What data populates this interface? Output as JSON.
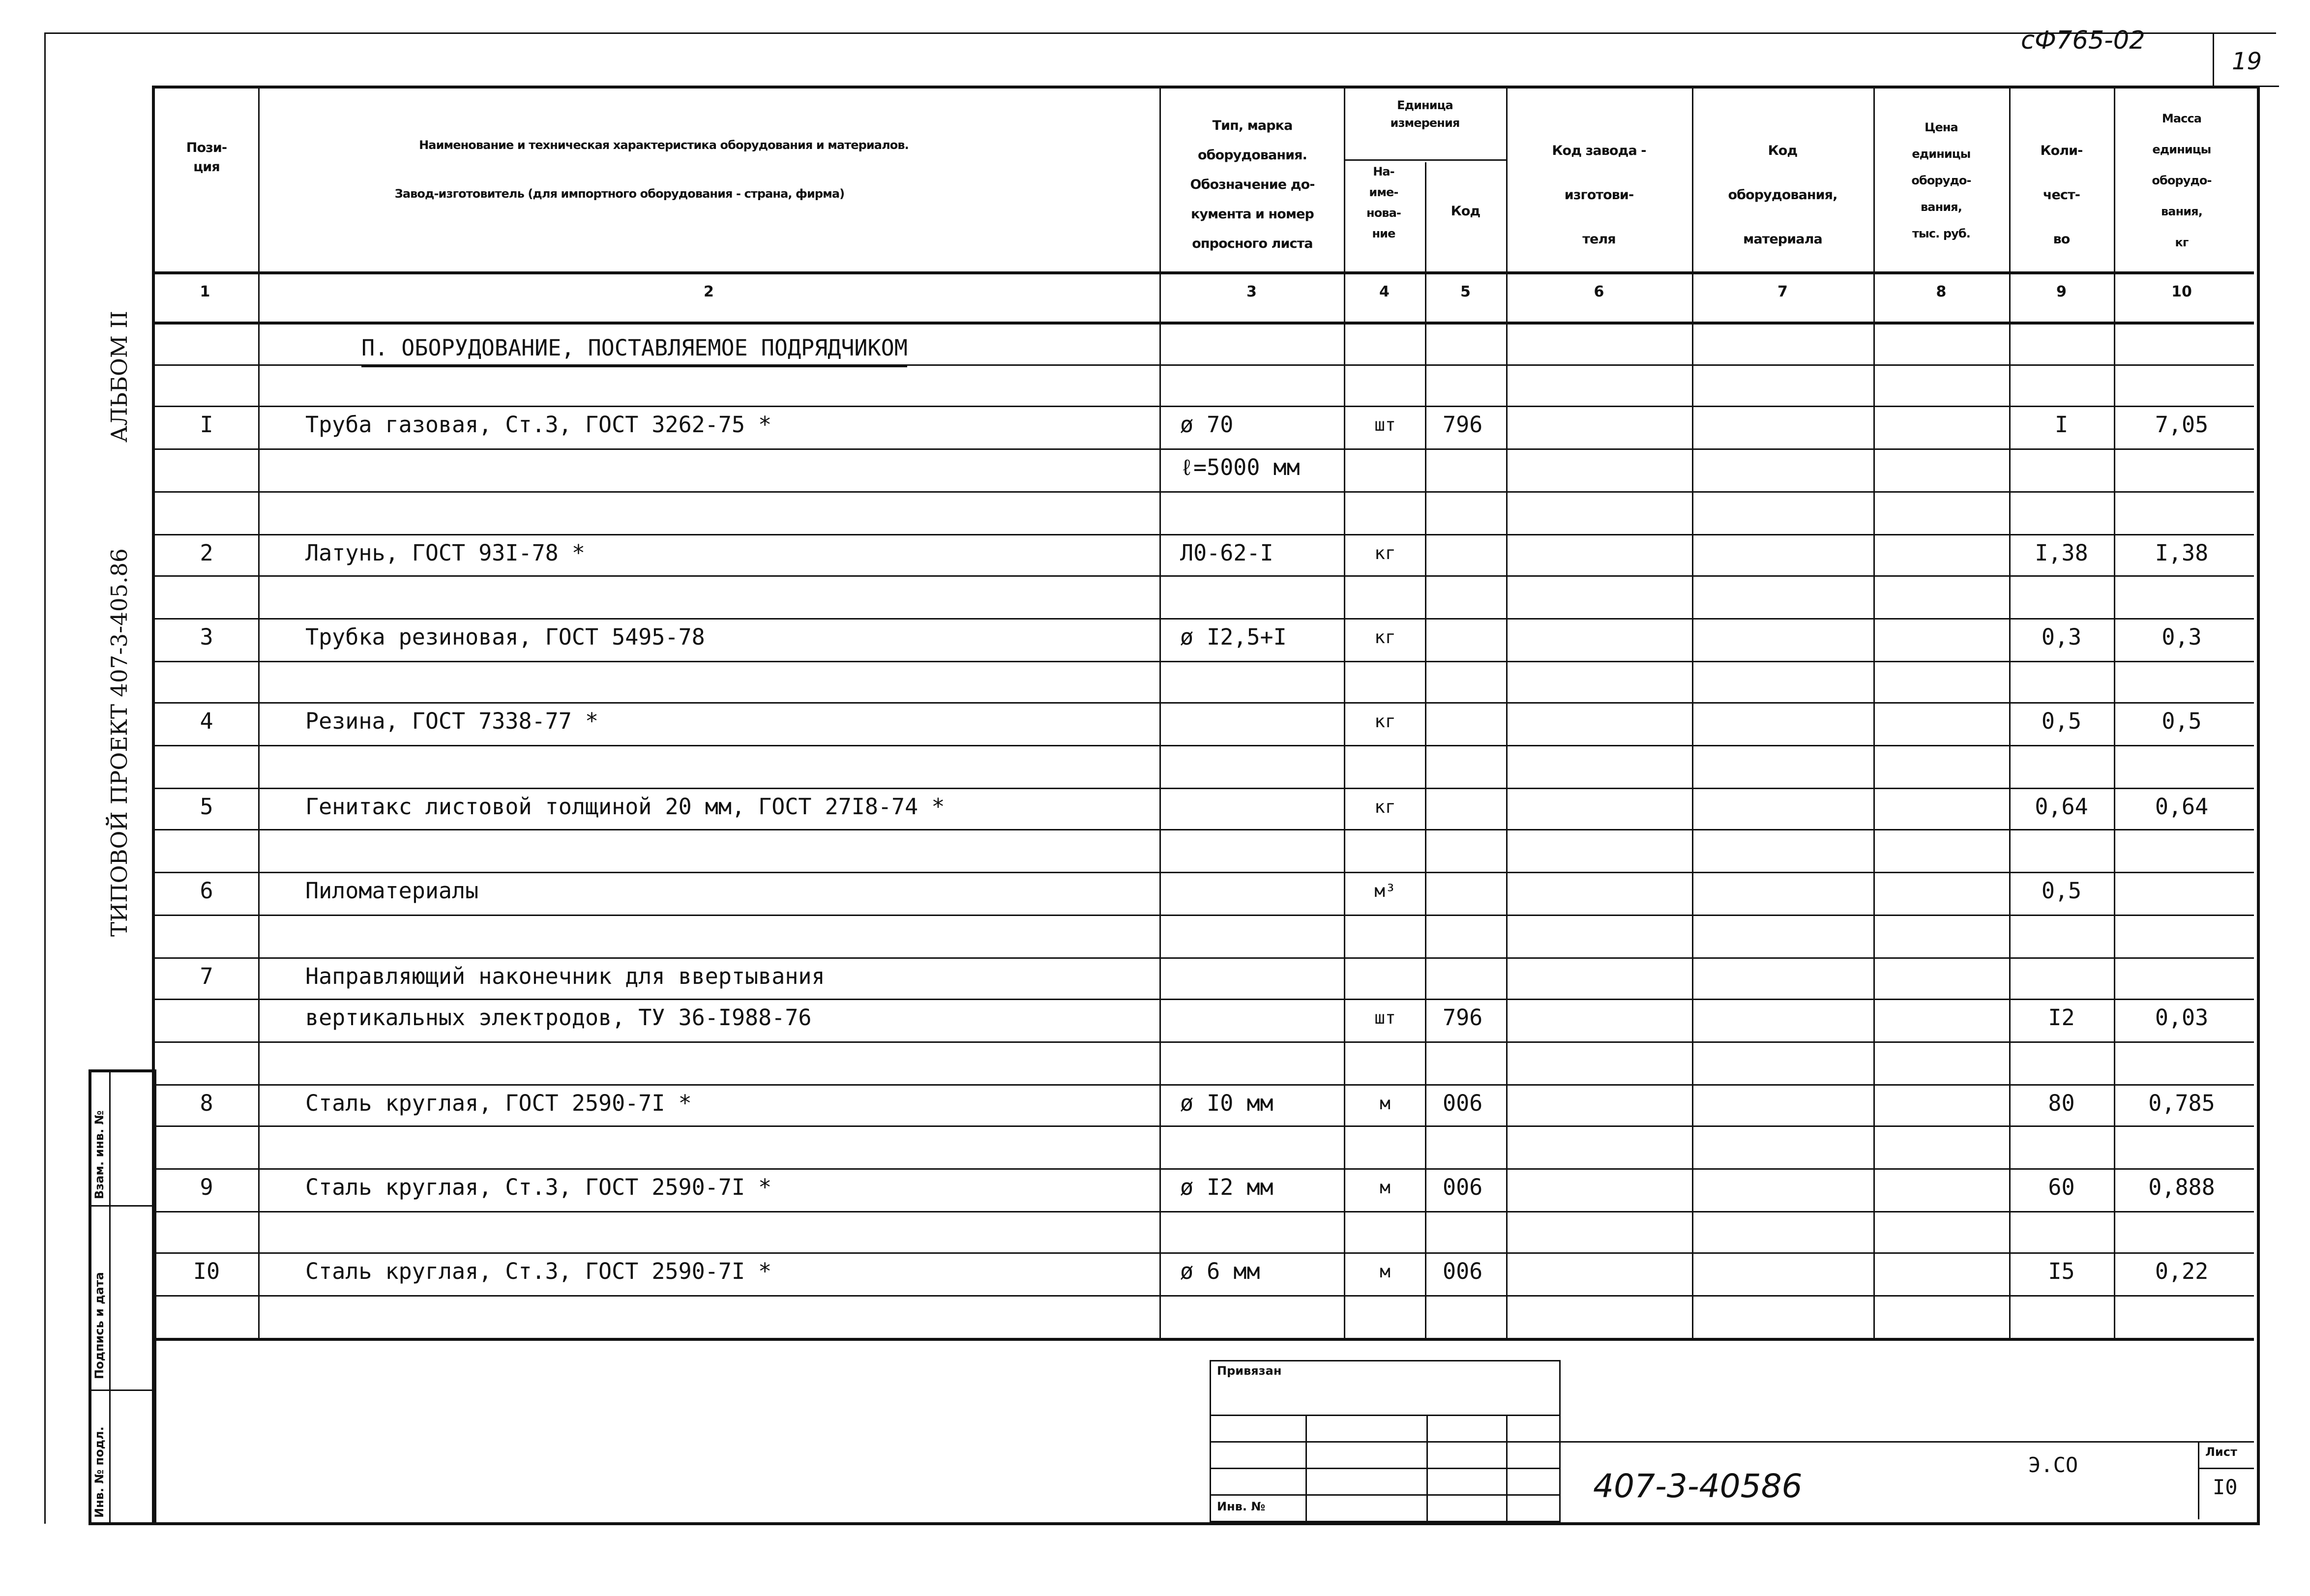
{
  "corner": {
    "doc_code": "сФ765-02",
    "page_number": "19"
  },
  "side": {
    "project": "ТИПОВОЙ ПРОЕКТ 407-3-405.86",
    "album": "АЛЬБОМ II",
    "stamp_labels": [
      "Взам. инв. №",
      "Подпись и дата",
      "Инв. № подл."
    ]
  },
  "header": {
    "col1": "Пози-\nция",
    "col2_line1": "Наименование и техническая характеристика оборудования и материалов.",
    "col2_line2": "Завод-изготовитель (для импортного оборудования - страна, фирма)",
    "col3": "Тип, марка\nоборудования.\nОбозначение до-\nкумента и номер\nопросного листа",
    "unit_group": "Единица\nизмерения",
    "col4": "На-\nиме-\nнова-\nние",
    "col5": "Код",
    "col6": "Код завода -\nизготови-\nтеля",
    "col7": "Код\nоборудования,\nматериала",
    "col8": "Цена\nединицы\nоборудо-\nвания,\nтыс. руб.",
    "col9": "Коли-\nчест-\nво",
    "col10": "Масса\nединицы\nоборудо-\nвания,\nкг",
    "numbers": [
      "1",
      "2",
      "3",
      "4",
      "5",
      "6",
      "7",
      "8",
      "9",
      "10"
    ]
  },
  "section_title": "П. ОБОРУДОВАНИЕ, ПОСТАВЛЯЕМОЕ ПОДРЯДЧИКОМ",
  "rows": [
    {
      "pos": "I",
      "name": "Труба газовая, Ст.3, ГОСТ 3262-75 *",
      "type": "ø 70",
      "unit": "шт",
      "code": "796",
      "qty": "I",
      "mass": "7,05"
    },
    {
      "pos": "",
      "name": "",
      "type": "ℓ=5000 мм",
      "unit": "",
      "code": "",
      "qty": "",
      "mass": ""
    },
    {
      "pos": "2",
      "name": "Латунь, ГОСТ 93I-78 *",
      "type": "Л0-62-I",
      "unit": "кг",
      "code": "",
      "qty": "I,38",
      "mass": "I,38"
    },
    {
      "pos": "3",
      "name": "Трубка резиновая, ГОСТ 5495-78",
      "type": "ø I2,5+I",
      "unit": "кг",
      "code": "",
      "qty": "0,3",
      "mass": "0,3"
    },
    {
      "pos": "4",
      "name": "Резина, ГОСТ 7338-77 *",
      "type": "",
      "unit": "кг",
      "code": "",
      "qty": "0,5",
      "mass": "0,5"
    },
    {
      "pos": "5",
      "name": "Генитакс листовой толщиной 20 мм, ГОСТ 27I8-74 *",
      "type": "",
      "unit": "кг",
      "code": "",
      "qty": "0,64",
      "mass": "0,64"
    },
    {
      "pos": "6",
      "name": "Пиломатериалы",
      "type": "",
      "unit": "м³",
      "code": "",
      "qty": "0,5",
      "mass": ""
    },
    {
      "pos": "7",
      "name": "Направляющий наконечник для ввертывания",
      "type": "",
      "unit": "",
      "code": "",
      "qty": "",
      "mass": ""
    },
    {
      "pos": "",
      "name": "вертикальных электродов, ТУ 36-I988-76",
      "type": "",
      "unit": "шт",
      "code": "796",
      "qty": "I2",
      "mass": "0,03"
    },
    {
      "pos": "8",
      "name": "Сталь круглая, ГОСТ 2590-7I *",
      "type": "ø I0 мм",
      "unit": "м",
      "code": "006",
      "qty": "80",
      "mass": "0,785"
    },
    {
      "pos": "9",
      "name": "Сталь круглая, Ст.3, ГОСТ 2590-7I *",
      "type": "ø I2 мм",
      "unit": "м",
      "code": "006",
      "qty": "60",
      "mass": "0,888"
    },
    {
      "pos": "I0",
      "name": "Сталь круглая, Ст.3, ГОСТ 2590-7I *",
      "type": "ø 6 мм",
      "unit": "м",
      "code": "006",
      "qty": "I5",
      "mass": "0,22"
    }
  ],
  "footer": {
    "attached_label": "Привязан",
    "inv_label": "Инв. №",
    "doc_number": "407-3-40586",
    "mark": "Э.СО",
    "sheet_label": "Лист",
    "sheet_number": "I0"
  }
}
